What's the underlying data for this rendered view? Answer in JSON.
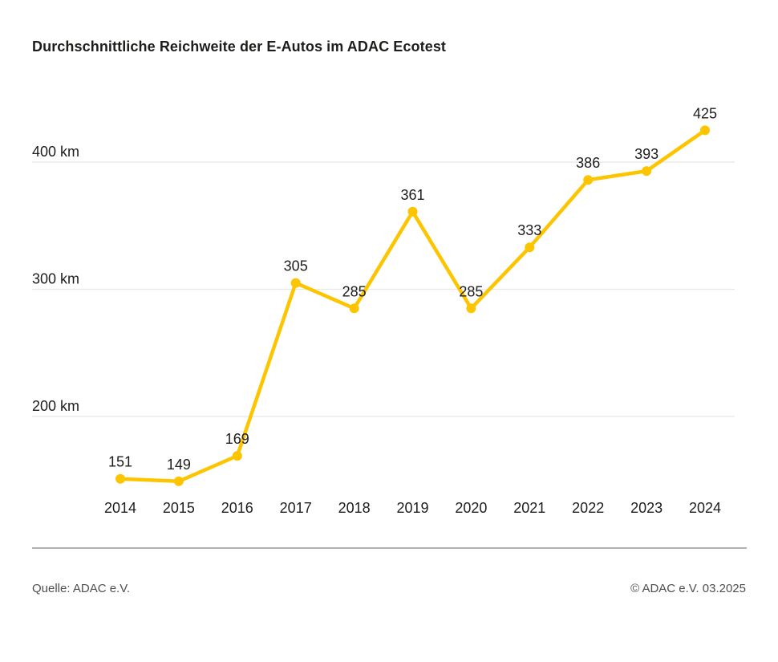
{
  "title": "Durchschnittliche Reichweite der E-Autos im ADAC Ecotest",
  "footer": {
    "source": "Quelle: ADAC e.V.",
    "copyright": "© ADAC e.V. 03.2025"
  },
  "colors": {
    "line": "#FCC500",
    "marker": "#FCC500",
    "grid": "#e8e8e8",
    "text": "#1d1d1b",
    "footer_text": "#4f4f4f",
    "divider": "#b2b2b2",
    "background": "#ffffff"
  },
  "chart_data": {
    "type": "line",
    "title": "Durchschnittliche Reichweite der E-Autos im ADAC Ecotest",
    "series_name": "Durchschnittliche Reichweite (km)",
    "categories": [
      "2014",
      "2015",
      "2016",
      "2017",
      "2018",
      "2019",
      "2020",
      "2021",
      "2022",
      "2023",
      "2024"
    ],
    "values": [
      151,
      149,
      169,
      305,
      285,
      361,
      285,
      333,
      386,
      393,
      425
    ],
    "xlabel": "",
    "ylabel": "km",
    "yticks": [
      {
        "value": 200,
        "label": "200 km"
      },
      {
        "value": 300,
        "label": "300 km"
      },
      {
        "value": 400,
        "label": "400 km"
      }
    ],
    "ylim": [
      110,
      465
    ],
    "grid": "horizontal-only",
    "legend": "none",
    "data_labels": true,
    "marker": "circle"
  }
}
